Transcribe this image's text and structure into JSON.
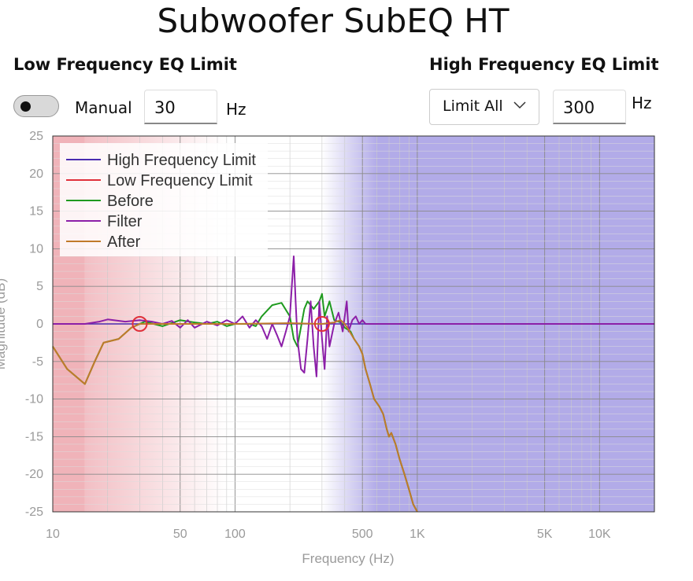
{
  "title": "Subwoofer SubEQ HT",
  "low_eq": {
    "heading": "Low Frequency EQ Limit",
    "toggle_label": "Manual",
    "value": "30",
    "unit": "Hz"
  },
  "high_eq": {
    "heading": "High Frequency EQ Limit",
    "mode": "Limit All",
    "value": "300",
    "unit": "Hz"
  },
  "chart_data": {
    "type": "line",
    "xlabel": "Frequency (Hz)",
    "ylabel": "Magnitude (dB)",
    "x_scale": "log",
    "xlim": [
      10,
      20000
    ],
    "ylim": [
      -25,
      25
    ],
    "grid": true,
    "legend_position": "top-left",
    "x_ticks": [
      {
        "v": 10,
        "label": "10"
      },
      {
        "v": 50,
        "label": "50"
      },
      {
        "v": 100,
        "label": "100"
      },
      {
        "v": 500,
        "label": "500"
      },
      {
        "v": 1000,
        "label": "1K"
      },
      {
        "v": 5000,
        "label": "5K"
      },
      {
        "v": 10000,
        "label": "10K"
      }
    ],
    "y_ticks": [
      25,
      20,
      15,
      10,
      5,
      0,
      -5,
      -10,
      -15,
      -20,
      -25
    ],
    "low_shading": {
      "solid_to": 15,
      "fade_to": 90,
      "color": "#e88a94"
    },
    "high_shading": {
      "fade_from": 300,
      "solid_from": 600,
      "color": "#b2abe8"
    },
    "markers": [
      {
        "x": 30,
        "y": 0
      },
      {
        "x": 300,
        "y": 0
      }
    ],
    "marker_color": "#e0303a",
    "series": [
      {
        "name": "High Frequency Limit",
        "color": "#4a2bb0",
        "points": []
      },
      {
        "name": "Low Frequency Limit",
        "color": "#e0303a",
        "points": []
      },
      {
        "name": "Before",
        "color": "#1f9a1f",
        "points": [
          [
            10,
            -3
          ],
          [
            12,
            -6
          ],
          [
            15,
            -8
          ],
          [
            17,
            -5
          ],
          [
            19,
            -2.5
          ],
          [
            23,
            -2
          ],
          [
            27,
            -0.5
          ],
          [
            32,
            0.3
          ],
          [
            40,
            -0.3
          ],
          [
            50,
            0.5
          ],
          [
            60,
            0.2
          ],
          [
            70,
            0
          ],
          [
            80,
            0.3
          ],
          [
            90,
            -0.3
          ],
          [
            100,
            0
          ],
          [
            120,
            0
          ],
          [
            130,
            -0.3
          ],
          [
            140,
            1
          ],
          [
            160,
            2.5
          ],
          [
            180,
            2.8
          ],
          [
            200,
            1
          ],
          [
            210,
            -2
          ],
          [
            220,
            -3
          ],
          [
            240,
            2
          ],
          [
            250,
            3
          ],
          [
            270,
            2
          ],
          [
            290,
            3
          ],
          [
            300,
            4
          ],
          [
            310,
            1
          ],
          [
            330,
            3
          ],
          [
            350,
            0.5
          ],
          [
            380,
            0.2
          ],
          [
            400,
            -0.5
          ],
          [
            430,
            -1
          ],
          [
            450,
            -2
          ],
          [
            480,
            -3
          ],
          [
            500,
            -4
          ],
          [
            520,
            -6
          ],
          [
            550,
            -8
          ],
          [
            580,
            -10
          ],
          [
            620,
            -11
          ],
          [
            650,
            -12
          ],
          [
            680,
            -14
          ],
          [
            700,
            -15
          ],
          [
            720,
            -14.5
          ],
          [
            760,
            -16
          ],
          [
            800,
            -18
          ],
          [
            850,
            -20
          ],
          [
            900,
            -22
          ],
          [
            950,
            -24
          ],
          [
            1000,
            -25
          ]
        ]
      },
      {
        "name": "Filter",
        "color": "#8c1fa8",
        "points": [
          [
            10,
            0
          ],
          [
            15,
            0
          ],
          [
            18,
            0.3
          ],
          [
            20,
            0.6
          ],
          [
            25,
            0.3
          ],
          [
            30,
            0.5
          ],
          [
            35,
            0.3
          ],
          [
            40,
            0
          ],
          [
            45,
            0.4
          ],
          [
            50,
            -0.5
          ],
          [
            55,
            0.5
          ],
          [
            60,
            -0.5
          ],
          [
            70,
            0.3
          ],
          [
            80,
            -0.2
          ],
          [
            90,
            0.5
          ],
          [
            100,
            0
          ],
          [
            110,
            1
          ],
          [
            120,
            -0.5
          ],
          [
            130,
            0.5
          ],
          [
            140,
            -0.3
          ],
          [
            150,
            -2
          ],
          [
            160,
            0
          ],
          [
            170,
            -1.5
          ],
          [
            180,
            -3
          ],
          [
            190,
            -1
          ],
          [
            200,
            1
          ],
          [
            210,
            9
          ],
          [
            215,
            3
          ],
          [
            220,
            -2
          ],
          [
            230,
            -6
          ],
          [
            240,
            -6.5
          ],
          [
            250,
            -2
          ],
          [
            260,
            3
          ],
          [
            270,
            -3
          ],
          [
            280,
            -7
          ],
          [
            290,
            3
          ],
          [
            300,
            -2
          ],
          [
            310,
            -6
          ],
          [
            320,
            1
          ],
          [
            330,
            -3
          ],
          [
            350,
            0
          ],
          [
            370,
            1.5
          ],
          [
            390,
            -1
          ],
          [
            410,
            3
          ],
          [
            420,
            -1
          ],
          [
            440,
            0.5
          ],
          [
            460,
            1
          ],
          [
            480,
            0
          ],
          [
            500,
            0.5
          ],
          [
            520,
            0
          ],
          [
            20000,
            0
          ]
        ]
      },
      {
        "name": "After",
        "color": "#c07a2a",
        "points": [
          [
            10,
            -3
          ],
          [
            12,
            -6
          ],
          [
            15,
            -8
          ],
          [
            17,
            -5
          ],
          [
            19,
            -2.5
          ],
          [
            23,
            -2
          ],
          [
            27,
            -0.5
          ],
          [
            30,
            0
          ],
          [
            40,
            0
          ],
          [
            100,
            0
          ],
          [
            200,
            0.1
          ],
          [
            300,
            0
          ],
          [
            350,
            0.2
          ],
          [
            380,
            0.5
          ],
          [
            400,
            0
          ],
          [
            420,
            -0.8
          ],
          [
            450,
            -2
          ],
          [
            480,
            -3
          ],
          [
            500,
            -4
          ],
          [
            520,
            -6
          ],
          [
            550,
            -8
          ],
          [
            580,
            -10
          ],
          [
            620,
            -11
          ],
          [
            650,
            -12
          ],
          [
            680,
            -14
          ],
          [
            700,
            -15
          ],
          [
            720,
            -14.5
          ],
          [
            760,
            -16
          ],
          [
            800,
            -18
          ],
          [
            850,
            -20
          ],
          [
            900,
            -22
          ],
          [
            950,
            -24
          ],
          [
            1000,
            -25
          ]
        ]
      }
    ]
  }
}
